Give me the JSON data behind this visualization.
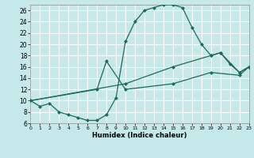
{
  "xlabel": "Humidex (Indice chaleur)",
  "bg_color": "#c5e8e8",
  "grid_color": "#ffffff",
  "line_color": "#1a6b5a",
  "xlim": [
    0,
    23
  ],
  "ylim": [
    6,
    27
  ],
  "xticks": [
    0,
    1,
    2,
    3,
    4,
    5,
    6,
    7,
    8,
    9,
    10,
    11,
    12,
    13,
    14,
    15,
    16,
    17,
    18,
    19,
    20,
    21,
    22,
    23
  ],
  "yticks": [
    6,
    8,
    10,
    12,
    14,
    16,
    18,
    20,
    22,
    24,
    26
  ],
  "line1_x": [
    0,
    1,
    2,
    3,
    4,
    5,
    6,
    7,
    8,
    9,
    10,
    11,
    12,
    13,
    14,
    15,
    16,
    17,
    18,
    19,
    20,
    21,
    22,
    23
  ],
  "line1_y": [
    10,
    9,
    9.5,
    8,
    7.5,
    7,
    6.5,
    6.5,
    7.5,
    10.5,
    20.5,
    24,
    26,
    26.5,
    27,
    27,
    26.5,
    23,
    20,
    18,
    18.5,
    16.5,
    15,
    16
  ],
  "line2_x": [
    0,
    10,
    15,
    19,
    20,
    22,
    23
  ],
  "line2_y": [
    10,
    13,
    16,
    18,
    18.5,
    15,
    16
  ],
  "line3_x": [
    0,
    7,
    8,
    10,
    15,
    19,
    22,
    23
  ],
  "line3_y": [
    10,
    12,
    17,
    12,
    13,
    15,
    14.5,
    16
  ],
  "markersize": 2.5,
  "linewidth": 0.9
}
